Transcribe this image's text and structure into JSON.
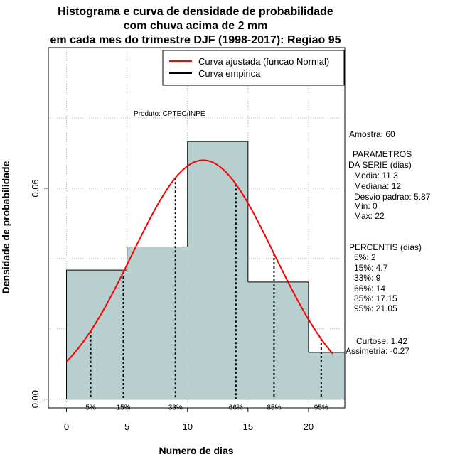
{
  "chart_data": {
    "type": "bar",
    "title_lines": [
      "Histograma e curva de densidade de probabilidade",
      "com chuva acima de 2 mm",
      "em cada mes do trimestre DJF (1998-2017): Regiao 95"
    ],
    "xlabel": "Numero de dias",
    "ylabel": "Densidade de probabilidade",
    "xlim": [
      -1.5,
      23
    ],
    "ylim": [
      -0.0025,
      0.1
    ],
    "x_ticks": [
      0,
      5,
      10,
      15,
      20
    ],
    "y_ticks": [
      0.0,
      0.06
    ],
    "y_tick_labels": [
      "0.00",
      "0.06"
    ],
    "grid_x": [
      0,
      5,
      10,
      15,
      20
    ],
    "grid_y": [
      0.0,
      0.02,
      0.04,
      0.06,
      0.08,
      0.1
    ],
    "grid": true,
    "bins": [
      {
        "x0": 0,
        "x1": 5,
        "density": 0.0367
      },
      {
        "x0": 5,
        "x1": 10,
        "density": 0.0433
      },
      {
        "x0": 10,
        "x1": 15,
        "density": 0.0733
      },
      {
        "x0": 15,
        "x1": 20,
        "density": 0.0333
      },
      {
        "x0": 20,
        "x1": 23,
        "density": 0.0133
      }
    ],
    "bar_color": "#b7cfcf",
    "normal_curve": {
      "mean": 11.3,
      "sd": 5.87,
      "x_from": 0,
      "x_to": 22,
      "color": "#ff0000"
    },
    "percentile_lines": [
      {
        "x": 2,
        "label": "5%"
      },
      {
        "x": 4.7,
        "label": "15%"
      },
      {
        "x": 9,
        "label": "33%"
      },
      {
        "x": 14,
        "label": "66%"
      },
      {
        "x": 17.15,
        "label": "85%"
      },
      {
        "x": 21.05,
        "label": "95%"
      }
    ],
    "legend": {
      "placement": "top-right",
      "entries": [
        {
          "label": "Curva ajustada (funcao Normal)",
          "color": "#ff0000"
        },
        {
          "label": "Curva empirica",
          "color": "#000000"
        }
      ]
    },
    "annotation_product": "Produto: CPTEC/INPE",
    "side_panel": {
      "amostra": "Amostra: 60",
      "params_header_1": "PARAMETROS",
      "params_header_2": "DA SERIE (dias)",
      "params": [
        "Media: 11.3",
        "Mediana: 12",
        "Desvio padrao: 5.87",
        "Min: 0",
        "Max: 22"
      ],
      "percentis_header": "PERCENTIS (dias)",
      "percentis": [
        "5%: 2",
        "15%: 4.7",
        "33%: 9",
        "66%: 14",
        "85%: 17.15",
        "95%: 21.05"
      ],
      "curtose": "Curtose: 1.42",
      "assimetria": "Assimetria: -0.27"
    }
  }
}
